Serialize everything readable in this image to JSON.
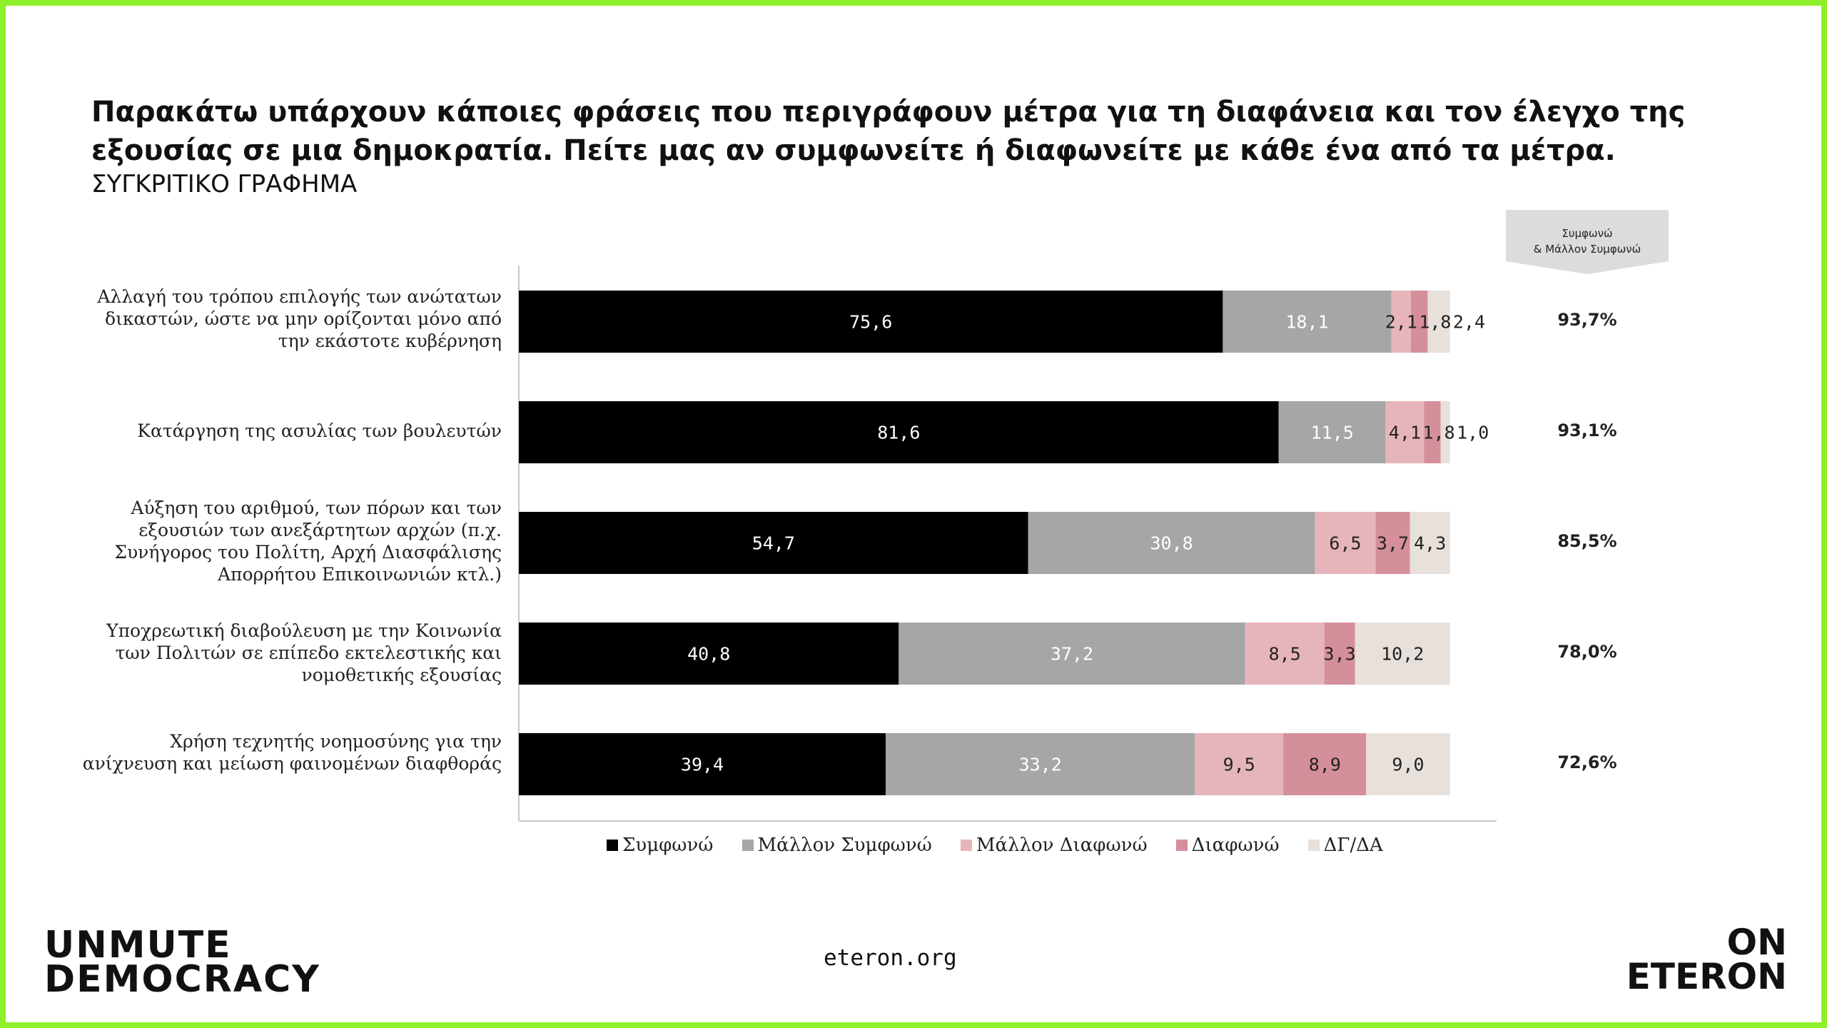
{
  "title": "Παρακάτω υπάρχουν κάποιες φράσεις που περιγράφουν μέτρα για τη διαφάνεια και τον έλεγχο της εξουσίας σε μια δημοκρατία. Πείτε μας αν συμφωνείτε ή διαφωνείτε με κάθε ένα από τα μέτρα.",
  "subtitle": "ΣΥΓΚΡΙΤΙΚΟ ΓΡΑΦΗΜΑ",
  "column_header": {
    "line1": "Συμφωνώ",
    "line2": "& Μάλλον Συμφωνώ"
  },
  "footer": {
    "url": "eteron.org",
    "logo_left_line1": "UNMUTE",
    "logo_left_line2": "DEMOCRACY",
    "logo_right_line1": "ON",
    "logo_right_line2": "ETERON"
  },
  "colors": {
    "agree": "#000000",
    "rather_agree": "#a6a6a6",
    "rather_disagree": "#e6b5bb",
    "disagree": "#d58f9b",
    "dk_na": "#e8e0da",
    "frame": "#8ef02a"
  },
  "chart_data": {
    "type": "bar",
    "orientation": "horizontal",
    "stacked": true,
    "xlim": [
      0,
      105
    ],
    "legend_position": "bottom",
    "categories": [
      "Αλλαγή του τρόπου επιλογής των ανώτατων δικαστών, ώστε να μην ορίζονται μόνο από την εκάστοτε κυβέρνηση",
      "Κατάργηση της ασυλίας των βουλευτών",
      "Αύξηση του αριθμού, των πόρων και των εξουσιών των ανεξάρτητων αρχών (π.χ. Συνήγορος του Πολίτη, Αρχή Διασφάλισης Απορρήτου Επικοινωνιών κτλ.)",
      "Υποχρεωτική διαβούλευση με την Κοινωνία των Πολιτών σε επίπεδο εκτελεστικής και νομοθετικής εξουσίας",
      "Χρήση τεχνητής νοημοσύνης για την ανίχνευση και μείωση φαινομένων διαφθοράς"
    ],
    "series": [
      {
        "name": "Συμφωνώ",
        "values": [
          75.6,
          81.6,
          54.7,
          40.8,
          39.4
        ]
      },
      {
        "name": "Μάλλον Συμφωνώ",
        "values": [
          18.1,
          11.5,
          30.8,
          37.2,
          33.2
        ]
      },
      {
        "name": "Μάλλον Διαφωνώ",
        "values": [
          2.1,
          4.1,
          6.5,
          8.5,
          9.5
        ]
      },
      {
        "name": "Διαφωνώ",
        "values": [
          1.8,
          1.8,
          3.7,
          3.3,
          8.9
        ]
      },
      {
        "name": "ΔΓ/ΔΑ",
        "values": [
          2.4,
          1.0,
          4.3,
          10.2,
          9.0
        ]
      }
    ],
    "data_labels": [
      [
        "75,6",
        "18,1",
        "2,1",
        "1,8",
        "2,4"
      ],
      [
        "81,6",
        "11,5",
        "4,1",
        "1,8",
        "1,0"
      ],
      [
        "54,7",
        "30,8",
        "6,5",
        "3,7",
        "4,3"
      ],
      [
        "40,8",
        "37,2",
        "8,5",
        "3,3",
        "10,2"
      ],
      [
        "39,4",
        "33,2",
        "9,5",
        "8,9",
        "9,0"
      ]
    ],
    "agree_total_labels": [
      "93,7%",
      "93,1%",
      "85,5%",
      "78,0%",
      "72,6%"
    ]
  }
}
